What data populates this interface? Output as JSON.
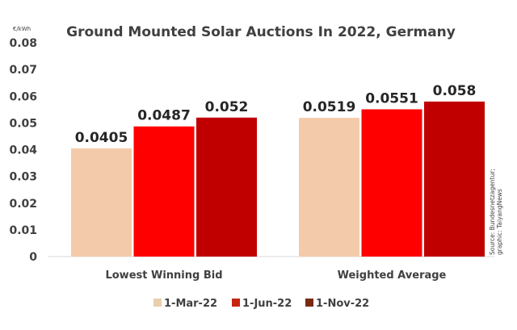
{
  "chart_data": {
    "type": "bar",
    "title": "Ground Mounted Solar Auctions In 2022, Germany",
    "unit_label": "€/kWh",
    "xlabel": "",
    "ylabel": "€/kWh",
    "ylim": [
      0,
      0.08
    ],
    "yticks": [
      0,
      0.01,
      0.02,
      0.03,
      0.04,
      0.05,
      0.06,
      0.07,
      0.08
    ],
    "ytick_labels": [
      "0",
      "0.01",
      "0.02",
      "0.03",
      "0.04",
      "0.05",
      "0.06",
      "0.07",
      "0.08"
    ],
    "categories": [
      "Lowest Winning Bid",
      "Weighted Average"
    ],
    "series": [
      {
        "name": "1-Mar-22",
        "values": [
          0.0405,
          0.0519
        ],
        "labels": [
          "0.0405",
          "0.0519"
        ],
        "color": "#f4cbaa"
      },
      {
        "name": "1-Jun-22",
        "values": [
          0.0487,
          0.0551
        ],
        "labels": [
          "0.0487",
          "0.0551"
        ],
        "color": "#ff0000"
      },
      {
        "name": "1-Nov-22",
        "values": [
          0.052,
          0.058
        ],
        "labels": [
          "0.052",
          "0.058"
        ],
        "color": "#c00000"
      }
    ],
    "legend": {
      "position": "bottom",
      "entries": [
        "1-Mar-22",
        "1-Jun-22",
        "1-Nov-22"
      ],
      "swatch_colors": [
        "#e9cfae",
        "#c82412",
        "#7a2a10"
      ]
    },
    "grid": false,
    "source_note": [
      "Source: Bundesnetzagentur;",
      "graphic: TaiyangNews"
    ]
  }
}
